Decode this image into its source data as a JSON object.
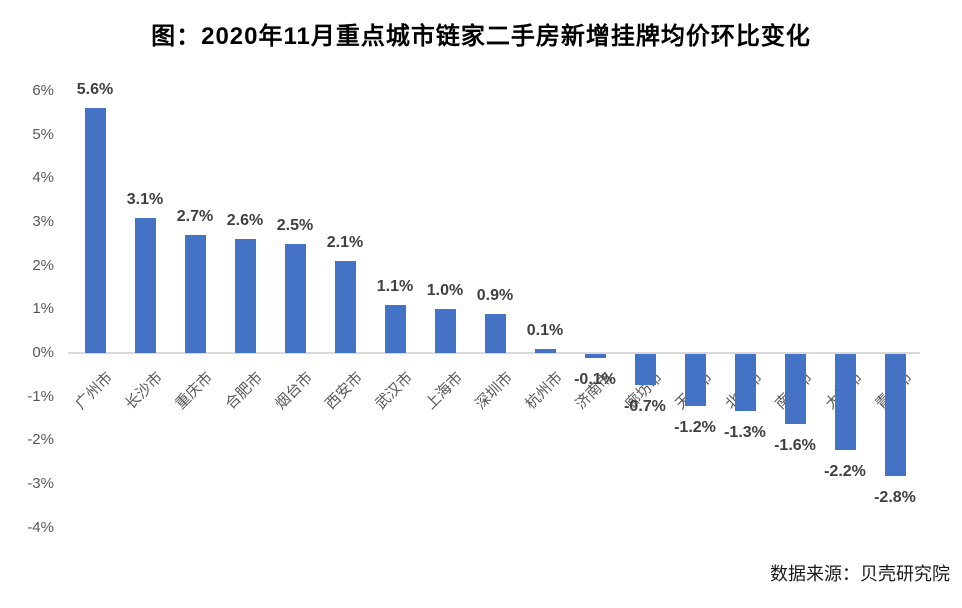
{
  "chart_data": {
    "type": "bar",
    "title": "图：2020年11月重点城市链家二手房新增挂牌均价环比变化",
    "categories": [
      "广州市",
      "长沙市",
      "重庆市",
      "合肥市",
      "烟台市",
      "西安市",
      "武汉市",
      "上海市",
      "深圳市",
      "杭州市",
      "济南市",
      "廊坊市",
      "天津市",
      "北京市",
      "南京市",
      "大连市",
      "青岛市"
    ],
    "values": [
      5.6,
      3.1,
      2.7,
      2.6,
      2.5,
      2.1,
      1.1,
      1.0,
      0.9,
      0.1,
      -0.1,
      -0.7,
      -1.2,
      -1.3,
      -1.6,
      -2.2,
      -2.8
    ],
    "value_labels": [
      "5.6%",
      "3.1%",
      "2.7%",
      "2.6%",
      "2.5%",
      "2.1%",
      "1.1%",
      "1.0%",
      "0.9%",
      "0.1%",
      "-0.1%",
      "-0.7%",
      "-1.2%",
      "-1.3%",
      "-1.6%",
      "-2.2%",
      "-2.8%"
    ],
    "y_ticks": [
      {
        "label": "6%",
        "value": 6
      },
      {
        "label": "5%",
        "value": 5
      },
      {
        "label": "4%",
        "value": 4
      },
      {
        "label": "3%",
        "value": 3
      },
      {
        "label": "2%",
        "value": 2
      },
      {
        "label": "1%",
        "value": 1
      },
      {
        "label": "0%",
        "value": 0
      },
      {
        "label": "-1%",
        "value": -1
      },
      {
        "label": "-2%",
        "value": -2
      },
      {
        "label": "-3%",
        "value": -3
      },
      {
        "label": "-4%",
        "value": -4
      }
    ],
    "ylim": [
      -4,
      6
    ],
    "xlabel": "",
    "ylabel": "",
    "grid": false,
    "legend": false,
    "source": "数据来源：贝壳研究院",
    "colors": {
      "bar": "#4472C4",
      "value_label": "#404040",
      "axis_label": "#595959",
      "axis_line": "#D9D9D9",
      "title": "#000000",
      "source_text": "#1A1A1A"
    }
  }
}
